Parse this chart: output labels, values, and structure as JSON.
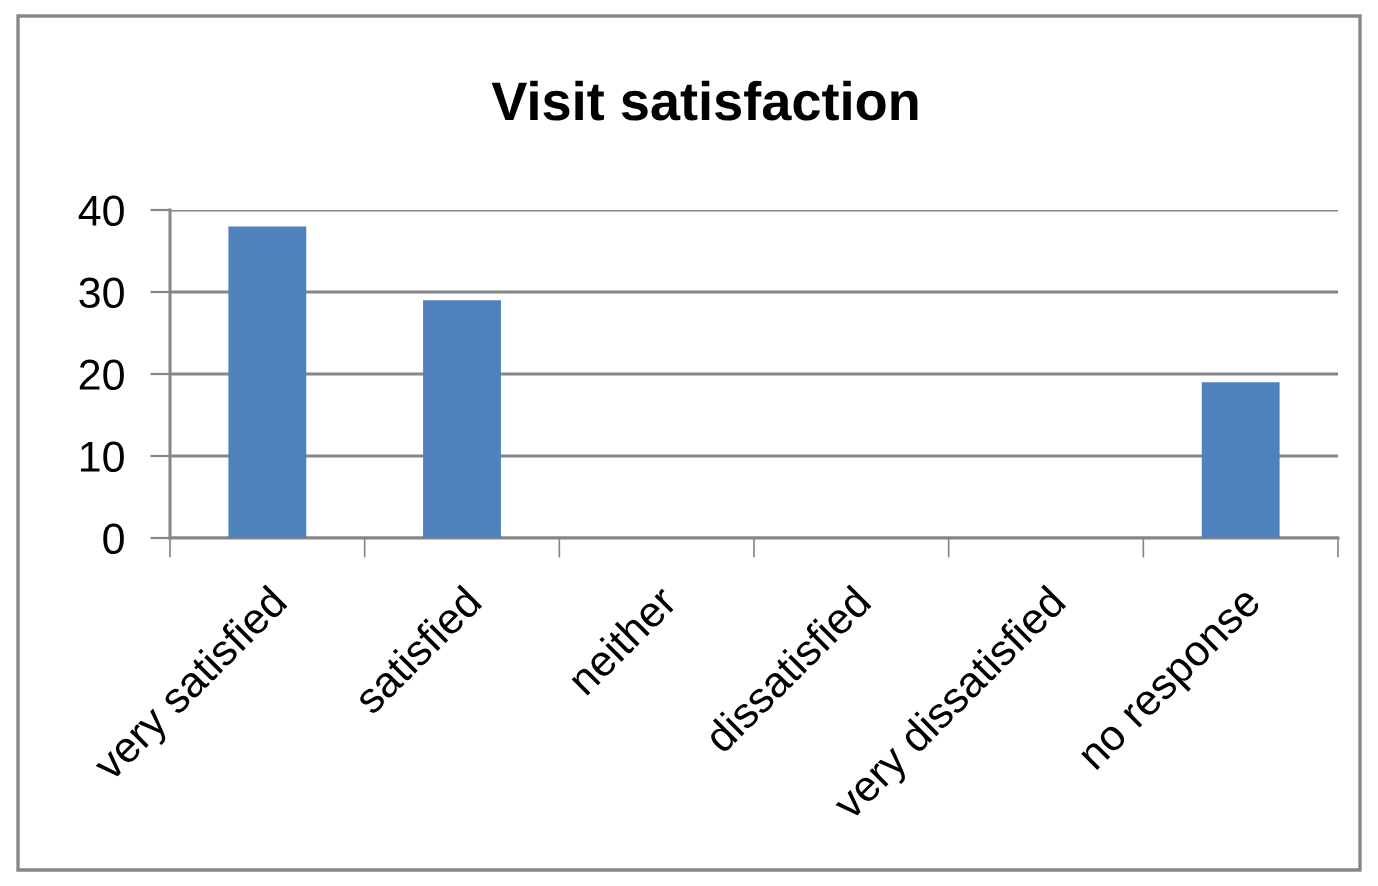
{
  "chart_data": {
    "type": "bar",
    "title": "Visit satisfaction",
    "categories": [
      "very satisfied",
      "satisfied",
      "neither",
      "dissatisfied",
      "very dissatisfied",
      "no response"
    ],
    "values": [
      38,
      29,
      0,
      0,
      0,
      19
    ],
    "color": "#4f81bd",
    "ylim": [
      0,
      40
    ],
    "yticks": [
      0,
      10,
      20,
      30,
      40
    ],
    "grid": "y",
    "legend": false
  }
}
